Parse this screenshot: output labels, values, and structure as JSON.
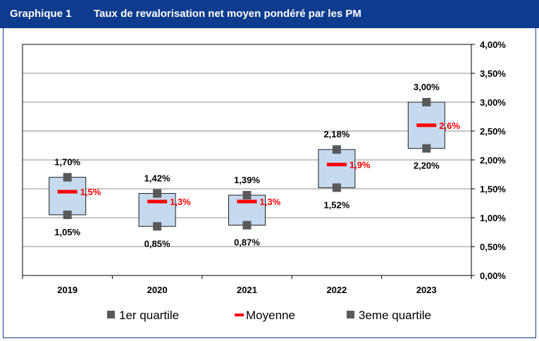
{
  "header": {
    "chart_number": "Graphique 1",
    "title": "Taux de revalorisation net moyen pondéré par les PM"
  },
  "colors": {
    "header_bg": "#0d3b8e",
    "box_fill": "#c5d9ef",
    "box_stroke": "#1f1f1f",
    "quartile_marker": "#595959",
    "mean_marker": "#ff0000",
    "grid": "#8c8c8c"
  },
  "chart_data": {
    "type": "box",
    "title": "Taux de revalorisation net moyen pondéré par les PM",
    "categories": [
      "2019",
      "2020",
      "2021",
      "2022",
      "2023"
    ],
    "series": [
      {
        "name": "1er quartile",
        "values": [
          1.05,
          0.85,
          0.87,
          1.52,
          2.2
        ],
        "labels": [
          "1,05%",
          "0,85%",
          "0,87%",
          "1,52%",
          "2,20%"
        ]
      },
      {
        "name": "Moyenne",
        "values": [
          1.45,
          1.28,
          1.28,
          1.92,
          2.6
        ],
        "labels": [
          "1,5%",
          "1,3%",
          "1,3%",
          "1,9%",
          "2,6%"
        ]
      },
      {
        "name": "3eme quartile",
        "values": [
          1.7,
          1.42,
          1.39,
          2.18,
          3.0
        ],
        "labels": [
          "1,70%",
          "1,42%",
          "1,39%",
          "2,18%",
          "3,00%"
        ]
      }
    ],
    "y_axis": {
      "position": "right",
      "min": 0,
      "max": 4,
      "step": 0.5,
      "tick_labels": [
        "0,00%",
        "0,50%",
        "1,00%",
        "1,50%",
        "2,00%",
        "2,50%",
        "3,00%",
        "3,50%",
        "4,00%"
      ]
    },
    "legend": {
      "position": "bottom",
      "entries": [
        "1er quartile",
        "Moyenne",
        "3eme quartile"
      ]
    },
    "grid": true
  }
}
